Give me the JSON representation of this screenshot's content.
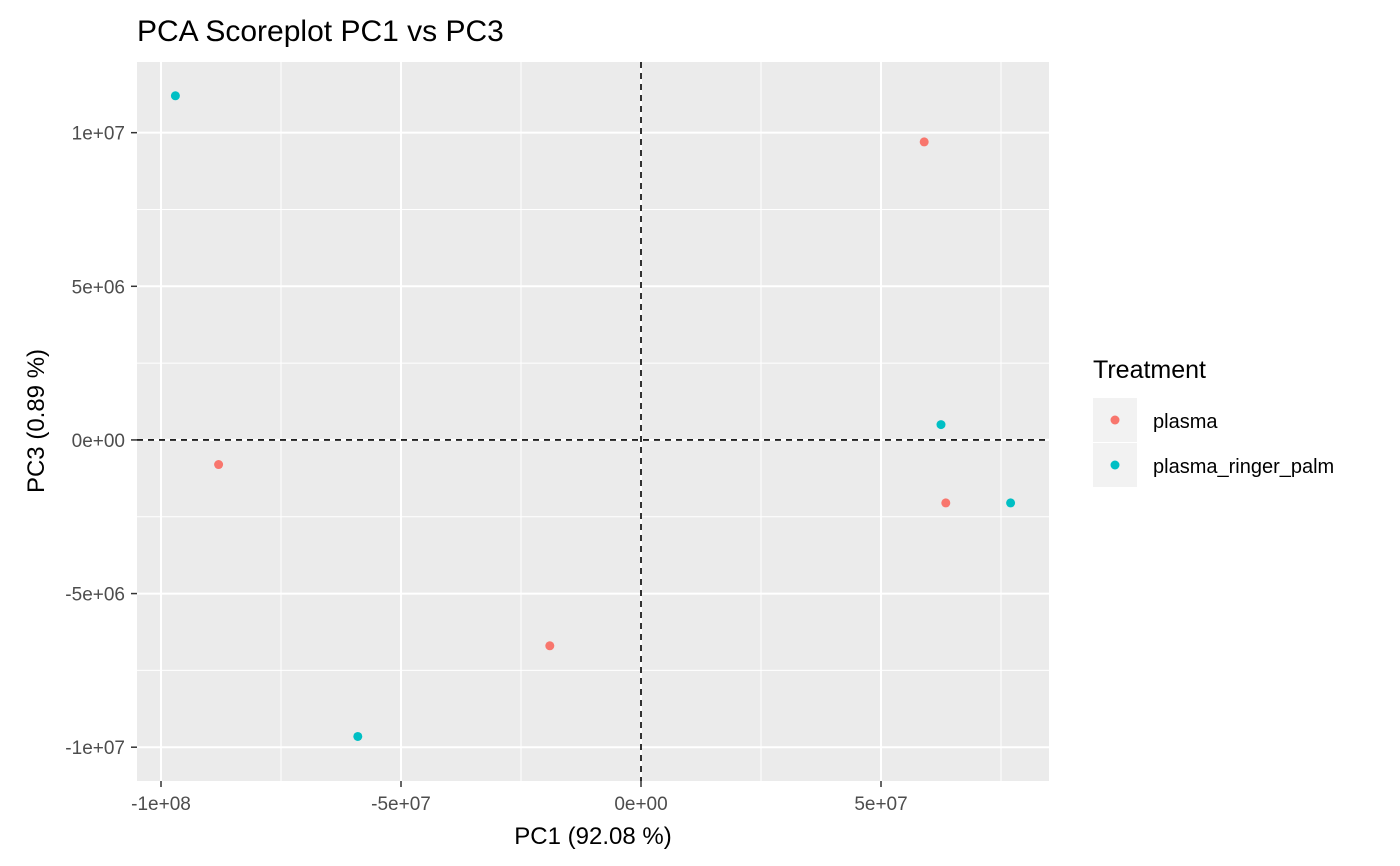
{
  "chart_data": {
    "type": "scatter",
    "title": "PCA Scoreplot PC1 vs PC3",
    "xlabel": "PC1 (92.08 %)",
    "ylabel": "PC3 (0.89 %)",
    "xlim": [
      -105000000,
      85000000
    ],
    "ylim": [
      -11100000,
      12300000
    ],
    "x_ticks": [
      {
        "value": -100000000,
        "label": "-1e+08"
      },
      {
        "value": -50000000,
        "label": "-5e+07"
      },
      {
        "value": 0,
        "label": "0e+00"
      },
      {
        "value": 50000000,
        "label": "5e+07"
      }
    ],
    "y_ticks": [
      {
        "value": -10000000,
        "label": "-1e+07"
      },
      {
        "value": -5000000,
        "label": "-5e+06"
      },
      {
        "value": 0,
        "label": "0e+00"
      },
      {
        "value": 5000000,
        "label": "5e+06"
      },
      {
        "value": 10000000,
        "label": "1e+07"
      }
    ],
    "reference_lines": {
      "x": 0,
      "y": 0,
      "style": "dashed"
    },
    "grid": true,
    "legend": {
      "title": "Treatment",
      "placement": "right"
    },
    "series": [
      {
        "name": "plasma",
        "color": "#F8766D",
        "points": [
          {
            "x": -88000000,
            "y": -800000
          },
          {
            "x": -19000000,
            "y": -6700000
          },
          {
            "x": 59000000,
            "y": 9700000
          },
          {
            "x": 63500000,
            "y": -2050000
          }
        ]
      },
      {
        "name": "plasma_ringer_palm",
        "color": "#00BFC4",
        "points": [
          {
            "x": -97000000,
            "y": 11200000
          },
          {
            "x": -59000000,
            "y": -9650000
          },
          {
            "x": 62500000,
            "y": 500000
          },
          {
            "x": 77000000,
            "y": -2050000
          }
        ]
      }
    ]
  }
}
